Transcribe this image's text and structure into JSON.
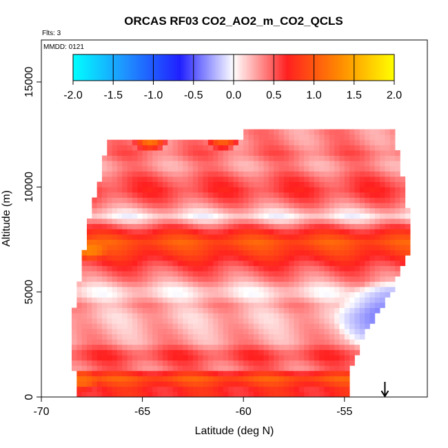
{
  "chart_data": {
    "type": "heatmap",
    "title": "ORCAS RF03 CO2_AO2_m_CO2_QCLS",
    "flights_label": "Flts: 3",
    "date_label": "MMDD: 0121",
    "xlabel": "Latitude (deg N)",
    "ylabel": "Altitude (m)",
    "xlim": [
      -70,
      -50.9
    ],
    "ylim": [
      0,
      17000
    ],
    "x_ticks": [
      -70,
      -65,
      -60,
      -55
    ],
    "y_ticks": [
      0,
      5000,
      10000,
      15000
    ],
    "grid": false,
    "colorbar": {
      "placement": "top-inside",
      "min": -2.0,
      "max": 2.0,
      "ticks": [
        "-2.0",
        "-1.5",
        "-1.0",
        "-0.5",
        "0.0",
        "0.5",
        "1.0",
        "1.5",
        "2.0"
      ],
      "colors": [
        "#00ffff",
        "#1f8fff",
        "#2020ff",
        "#ffffff",
        "#ff2020",
        "#ff8c00",
        "#ffff00"
      ]
    },
    "marker": {
      "type": "arrow-down",
      "latitude": -53.0,
      "altitude": 0
    },
    "coverage": {
      "west_edge": [
        [
          0,
          -68.2
        ],
        [
          1500,
          -68.4
        ],
        [
          3000,
          -68.6
        ],
        [
          4500,
          -68.3
        ],
        [
          6000,
          -68.0
        ],
        [
          7500,
          -67.8
        ],
        [
          9000,
          -67.5
        ],
        [
          10500,
          -67.0
        ],
        [
          11500,
          -66.9
        ],
        [
          12200,
          -66.7
        ]
      ],
      "east_edge": [
        [
          0,
          -54.6
        ],
        [
          1000,
          -54.9
        ],
        [
          2000,
          -54.4
        ],
        [
          3000,
          -54.0
        ],
        [
          4000,
          -53.4
        ],
        [
          5000,
          -52.6
        ],
        [
          6000,
          -52.3
        ],
        [
          7000,
          -51.8
        ],
        [
          8000,
          -51.7
        ],
        [
          9000,
          -51.9
        ],
        [
          10000,
          -52.0
        ],
        [
          11000,
          -52.3
        ],
        [
          12000,
          -52.4
        ],
        [
          12700,
          -52.6
        ]
      ]
    },
    "bands": [
      {
        "alt": 400,
        "value": 0.7
      },
      {
        "alt": 900,
        "value": 1.0
      },
      {
        "alt": 1400,
        "value": 0.4
      },
      {
        "alt": 2000,
        "value": 0.6
      },
      {
        "alt": 2600,
        "value": 0.3
      },
      {
        "alt": 3200,
        "value": 0.25
      },
      {
        "alt": 3800,
        "value": 0.2
      },
      {
        "alt": 4400,
        "value": 0.3
      },
      {
        "alt": 5000,
        "value": 0.05
      },
      {
        "alt": 5600,
        "value": 0.35
      },
      {
        "alt": 6200,
        "value": 0.55
      },
      {
        "alt": 6800,
        "value": 0.8
      },
      {
        "alt": 7400,
        "value": 1.0
      },
      {
        "alt": 8000,
        "value": 0.6
      },
      {
        "alt": 8600,
        "value": 0.05
      },
      {
        "alt": 9200,
        "value": 0.4
      },
      {
        "alt": 9800,
        "value": 0.6
      },
      {
        "alt": 10400,
        "value": 0.5
      },
      {
        "alt": 11000,
        "value": 0.3
      },
      {
        "alt": 11600,
        "value": 0.45
      },
      {
        "alt": 12200,
        "value": 0.35
      }
    ],
    "negative_region": {
      "lat_center": -53.0,
      "alt_center": 3800,
      "lat_half_width": 2.0,
      "alt_half_height": 1400,
      "value": -0.4
    },
    "hot_spots": [
      {
        "lat": -67.6,
        "alt": 7000,
        "value": 1.3
      },
      {
        "lat": -68.0,
        "alt": 800,
        "value": 1.15
      },
      {
        "lat": -64.6,
        "alt": 12200,
        "value": 1.2
      },
      {
        "lat": -61.0,
        "alt": 12250,
        "value": 1.1
      }
    ]
  }
}
